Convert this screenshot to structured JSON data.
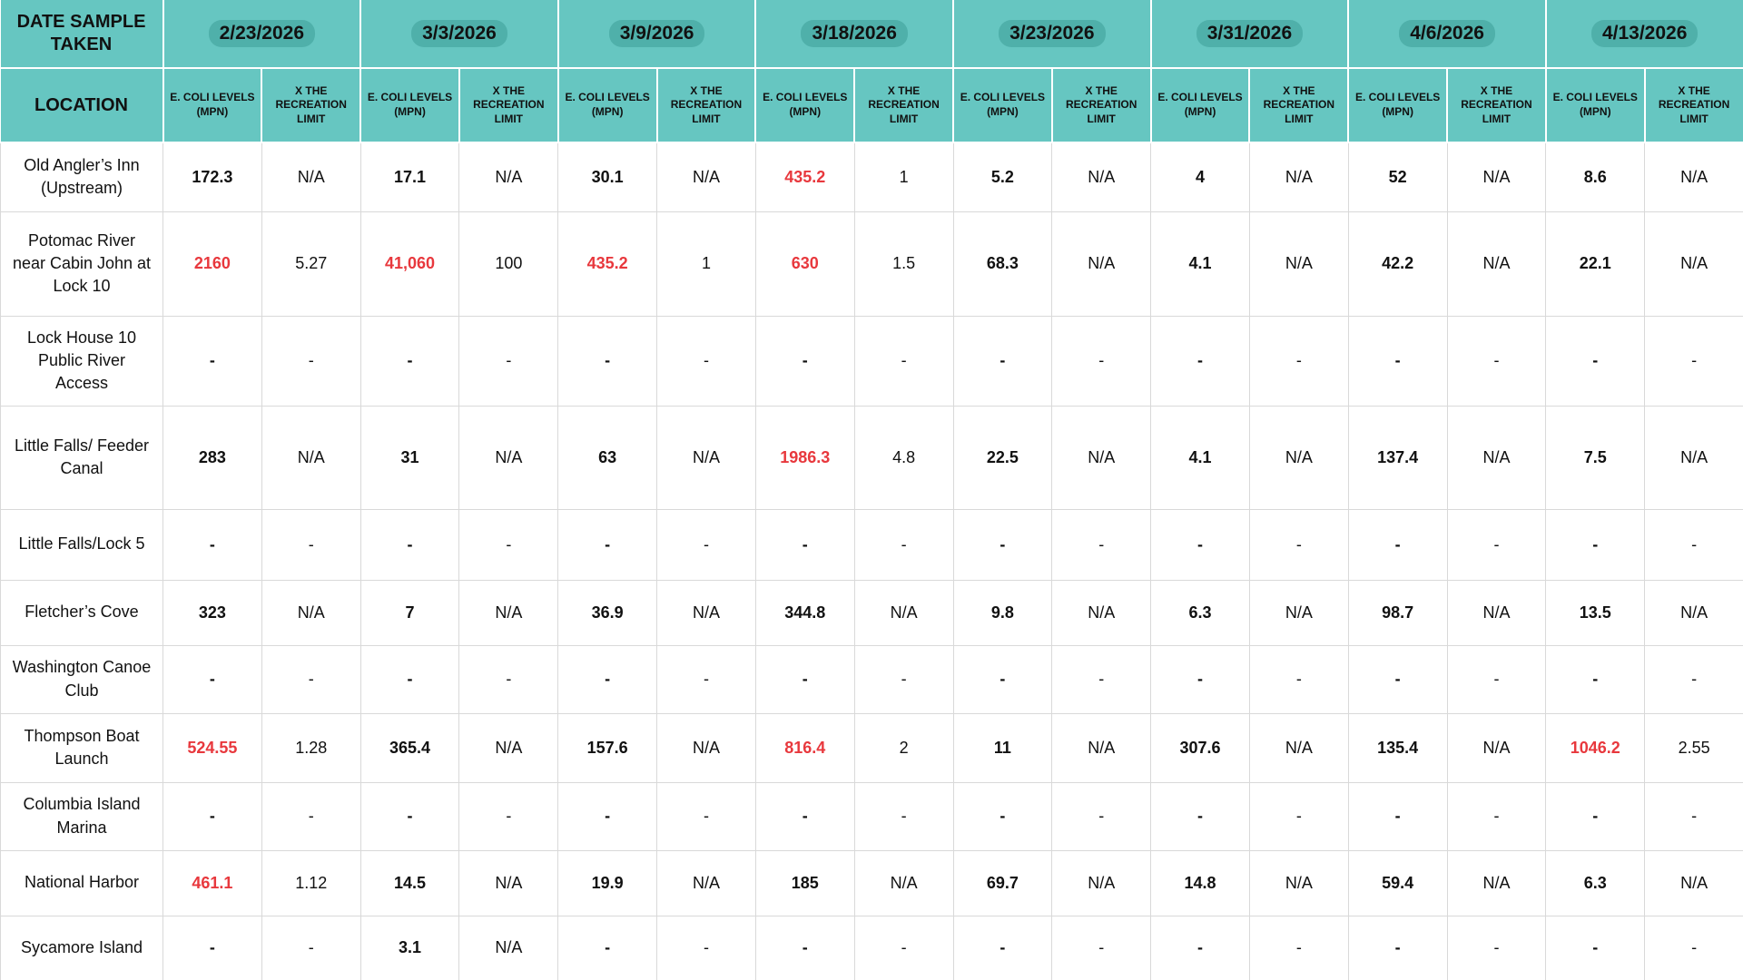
{
  "table": {
    "corner_top": "DATE SAMPLE TAKEN",
    "corner_bottom": "LOCATION",
    "dates": [
      "2/23/2026",
      "3/3/2026",
      "3/9/2026",
      "3/18/2026",
      "3/23/2026",
      "3/31/2026",
      "4/6/2026",
      "4/13/2026"
    ],
    "sub_headers": [
      "E. COLI LEVELS (MPN)",
      "X THE RECREATION LIMIT"
    ],
    "rows": [
      {
        "location": "Old Angler’s Inn (Upstream)",
        "cells": [
          "172.3",
          "N/A",
          "17.1",
          "N/A",
          "30.1",
          "N/A",
          {
            "text": "435.2",
            "color": "#e8383d"
          },
          "1",
          "5.2",
          "N/A",
          "4",
          "N/A",
          "52",
          "N/A",
          "8.6",
          "N/A"
        ]
      },
      {
        "location": "Potomac River near Cabin John at Lock 10",
        "cells": [
          {
            "text": "2160",
            "color": "#e8383d"
          },
          "5.27",
          {
            "text": "41,060",
            "color": "#e8383d"
          },
          "100",
          {
            "text": "435.2",
            "color": "#e8383d"
          },
          "1",
          {
            "text": "630",
            "color": "#e8383d"
          },
          "1.5",
          "68.3",
          "N/A",
          "4.1",
          "N/A",
          "42.2",
          "N/A",
          "22.1",
          "N/A"
        ]
      },
      {
        "location": "Lock House 10 Public River Access",
        "cells": [
          "-",
          "-",
          "-",
          "-",
          "-",
          "-",
          "-",
          "-",
          "-",
          "-",
          "-",
          "-",
          "-",
          "-",
          "-",
          "-"
        ]
      },
      {
        "location": "Little Falls/ Feeder Canal",
        "cells": [
          "283",
          "N/A",
          "31",
          "N/A",
          "63",
          "N/A",
          {
            "text": "1986.3",
            "color": "#e8383d"
          },
          "4.8",
          "22.5",
          "N/A",
          "4.1",
          "N/A",
          "137.4",
          "N/A",
          "7.5",
          "N/A"
        ]
      },
      {
        "location": "Little Falls/Lock 5",
        "cells": [
          "-",
          "-",
          "-",
          "-",
          "-",
          "-",
          "-",
          "-",
          "-",
          "-",
          "-",
          "-",
          "-",
          "-",
          "-",
          "-"
        ]
      },
      {
        "location": "Fletcher’s Cove",
        "cells": [
          "323",
          "N/A",
          "7",
          "N/A",
          "36.9",
          "N/A",
          "344.8",
          "N/A",
          "9.8",
          "N/A",
          "6.3",
          "N/A",
          "98.7",
          "N/A",
          "13.5",
          "N/A"
        ]
      },
      {
        "location": "Washington Canoe Club",
        "cells": [
          "-",
          "-",
          "-",
          "-",
          "-",
          "-",
          "-",
          "-",
          "-",
          "-",
          "-",
          "-",
          "-",
          "-",
          "-",
          "-"
        ]
      },
      {
        "location": "Thompson Boat Launch",
        "cells": [
          {
            "text": "524.55",
            "color": "#e8383d"
          },
          "1.28",
          "365.4",
          "N/A",
          "157.6",
          "N/A",
          {
            "text": "816.4",
            "color": "#e8383d"
          },
          "2",
          "11",
          "N/A",
          "307.6",
          "N/A",
          "135.4",
          "N/A",
          {
            "text": "1046.2",
            "color": "#e8383d"
          },
          "2.55"
        ]
      },
      {
        "location": "Columbia Island Marina",
        "cells": [
          "-",
          "-",
          "-",
          "-",
          "-",
          "-",
          "-",
          "-",
          "-",
          "-",
          "-",
          "-",
          "-",
          "-",
          "-",
          "-"
        ]
      },
      {
        "location": "National Harbor",
        "cells": [
          {
            "text": "461.1",
            "color": "#e8383d"
          },
          "1.12",
          "14.5",
          "N/A",
          "19.9",
          "N/A",
          "185",
          "N/A",
          "69.7",
          "N/A",
          "14.8",
          "N/A",
          "59.4",
          "N/A",
          "6.3",
          "N/A"
        ]
      },
      {
        "location": "Sycamore Island",
        "cells": [
          "-",
          "-",
          "3.1",
          "N/A",
          "-",
          "-",
          "-",
          "-",
          "-",
          "-",
          "-",
          "-",
          "-",
          "-",
          "-",
          "-"
        ]
      }
    ]
  }
}
